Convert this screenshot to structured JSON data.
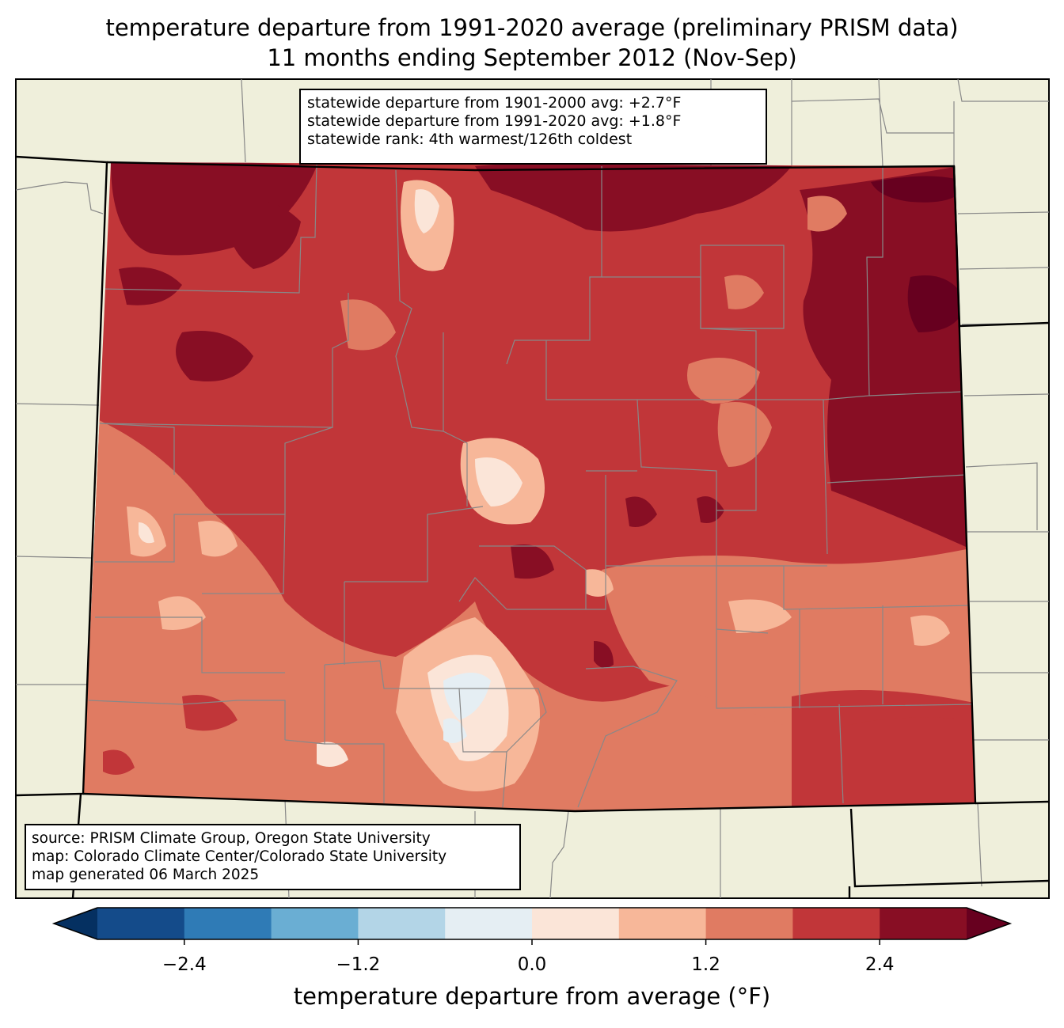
{
  "title": {
    "line1": "temperature departure from 1991-2020 average (preliminary PRISM data)",
    "line2": "11 months ending September 2012 (Nov-Sep)"
  },
  "stats": {
    "line1": "statewide departure from 1901-2000 avg: +2.7°F",
    "line2": "statewide departure from 1991-2020 avg: +1.8°F",
    "line3": "statewide rank: 4th warmest/126th coldest"
  },
  "source": {
    "line1": "source: PRISM Climate Group, Oregon State University",
    "line2": "map: Colorado Climate Center/Colorado State University",
    "line3": "map generated 06 March 2025"
  },
  "colorbar": {
    "label": "temperature departure from average (°F)",
    "ticks": [
      "−2.4",
      "−1.2",
      "0.0",
      "1.2",
      "2.4"
    ],
    "tick_values": [
      -2.4,
      -1.2,
      0.0,
      1.2,
      2.4
    ],
    "range": [
      -3.0,
      3.0
    ],
    "bin_colors": [
      "#053061",
      "#144b8a",
      "#2f7bb6",
      "#6aaed3",
      "#b3d5e7",
      "#e5eef3",
      "#fbe5d8",
      "#f7b799",
      "#e07b62",
      "#c13639",
      "#880e24",
      "#67001f"
    ],
    "bin_edges": [
      -3.0,
      -2.4,
      -1.8,
      -1.2,
      -0.6,
      0.0,
      0.6,
      1.2,
      1.8,
      2.4,
      3.0
    ]
  },
  "map_colors": {
    "land": "#efefdb",
    "border": "#000000",
    "county": "#888888"
  }
}
